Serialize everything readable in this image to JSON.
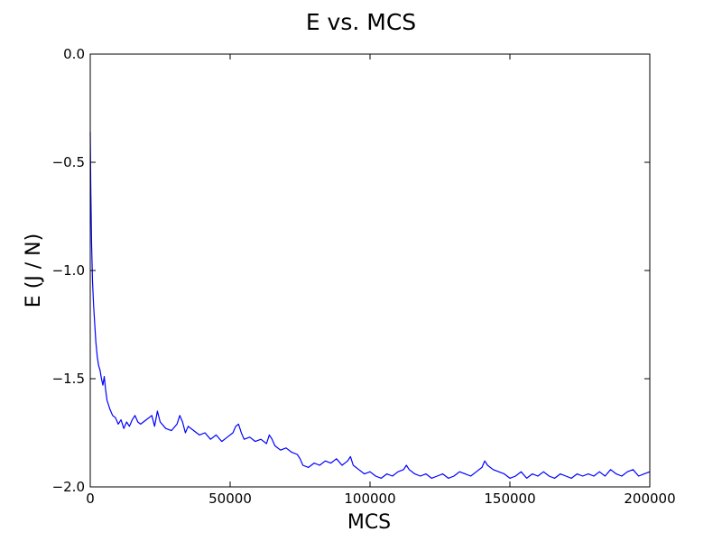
{
  "chart_data": {
    "type": "line",
    "title": "E vs. MCS",
    "xlabel": "MCS",
    "ylabel": "E (J / N)",
    "xlim": [
      0,
      200000
    ],
    "ylim": [
      -2.0,
      0.0
    ],
    "xticks": [
      0,
      50000,
      100000,
      150000,
      200000
    ],
    "xtick_labels": [
      "0",
      "50000",
      "100000",
      "150000",
      "200000"
    ],
    "yticks": [
      0.0,
      -0.5,
      -1.0,
      -1.5,
      -2.0
    ],
    "ytick_labels": [
      "0.0",
      "−0.5",
      "−1.0",
      "−1.5",
      "−2.0"
    ],
    "grid": false,
    "series": [
      {
        "color": "#0000ff",
        "x": [
          0,
          200,
          500,
          800,
          1200,
          1600,
          2000,
          2500,
          3000,
          3500,
          4000,
          4500,
          5000,
          5500,
          6000,
          7000,
          8000,
          9000,
          10000,
          11000,
          12000,
          13000,
          14000,
          15000,
          16000,
          17000,
          18000,
          20000,
          22000,
          23000,
          24000,
          25000,
          27000,
          29000,
          31000,
          32000,
          33000,
          34000,
          35000,
          37000,
          39000,
          41000,
          43000,
          45000,
          47000,
          49000,
          51000,
          52000,
          53000,
          54000,
          55000,
          57000,
          59000,
          61000,
          63000,
          64000,
          65000,
          66000,
          68000,
          70000,
          72000,
          74000,
          75000,
          76000,
          78000,
          80000,
          82000,
          84000,
          86000,
          88000,
          90000,
          92000,
          93000,
          94000,
          96000,
          98000,
          100000,
          102000,
          104000,
          106000,
          108000,
          110000,
          112000,
          113000,
          114000,
          116000,
          118000,
          120000,
          122000,
          124000,
          126000,
          128000,
          130000,
          132000,
          134000,
          136000,
          138000,
          140000,
          141000,
          142000,
          144000,
          146000,
          148000,
          150000,
          152000,
          154000,
          156000,
          158000,
          160000,
          162000,
          164000,
          166000,
          168000,
          170000,
          172000,
          174000,
          176000,
          178000,
          180000,
          182000,
          184000,
          186000,
          188000,
          190000,
          192000,
          194000,
          196000,
          198000,
          200000
        ],
        "y": [
          -0.36,
          -0.62,
          -0.88,
          -1.05,
          -1.16,
          -1.25,
          -1.33,
          -1.4,
          -1.44,
          -1.46,
          -1.5,
          -1.53,
          -1.49,
          -1.55,
          -1.6,
          -1.64,
          -1.67,
          -1.68,
          -1.71,
          -1.69,
          -1.73,
          -1.7,
          -1.72,
          -1.69,
          -1.67,
          -1.7,
          -1.71,
          -1.69,
          -1.67,
          -1.72,
          -1.65,
          -1.7,
          -1.73,
          -1.74,
          -1.71,
          -1.67,
          -1.7,
          -1.75,
          -1.72,
          -1.74,
          -1.76,
          -1.75,
          -1.78,
          -1.76,
          -1.79,
          -1.77,
          -1.75,
          -1.72,
          -1.71,
          -1.75,
          -1.78,
          -1.77,
          -1.79,
          -1.78,
          -1.8,
          -1.76,
          -1.78,
          -1.81,
          -1.83,
          -1.82,
          -1.84,
          -1.85,
          -1.87,
          -1.9,
          -1.91,
          -1.89,
          -1.9,
          -1.88,
          -1.89,
          -1.87,
          -1.9,
          -1.88,
          -1.86,
          -1.9,
          -1.92,
          -1.94,
          -1.93,
          -1.95,
          -1.96,
          -1.94,
          -1.95,
          -1.93,
          -1.92,
          -1.9,
          -1.92,
          -1.94,
          -1.95,
          -1.94,
          -1.96,
          -1.95,
          -1.94,
          -1.96,
          -1.95,
          -1.93,
          -1.94,
          -1.95,
          -1.93,
          -1.91,
          -1.88,
          -1.9,
          -1.92,
          -1.93,
          -1.94,
          -1.96,
          -1.95,
          -1.93,
          -1.96,
          -1.94,
          -1.95,
          -1.93,
          -1.95,
          -1.96,
          -1.94,
          -1.95,
          -1.96,
          -1.94,
          -1.95,
          -1.94,
          -1.95,
          -1.93,
          -1.95,
          -1.92,
          -1.94,
          -1.95,
          -1.93,
          -1.92,
          -1.95,
          -1.94,
          -1.93
        ]
      }
    ]
  }
}
